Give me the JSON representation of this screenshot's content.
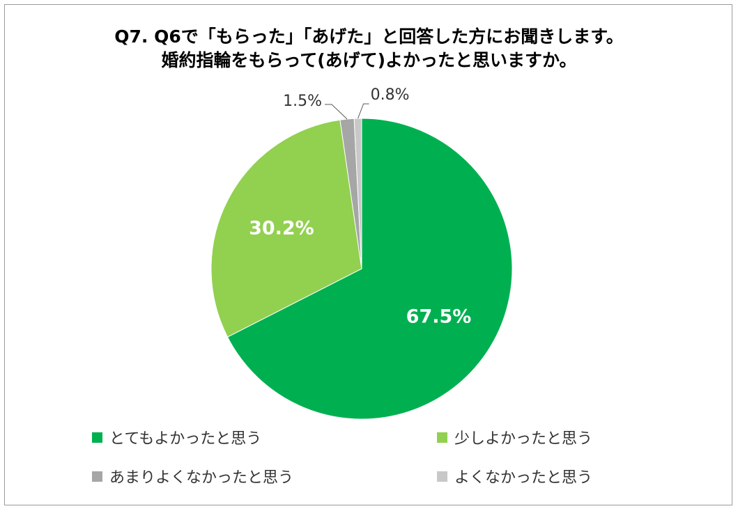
{
  "chart_data": {
    "type": "pie",
    "title_lines": [
      "Q7. Q6で「もらった」「あげた」と回答した方にお聞きします。",
      "婚約指輪をもらって(あげて)よかったと思いますか。"
    ],
    "slices": [
      {
        "label": "とてもよかったと思う",
        "value": 67.5,
        "display": "67.5%",
        "color": "#00b050"
      },
      {
        "label": "少しよかったと思う",
        "value": 30.2,
        "display": "30.2%",
        "color": "#92d050"
      },
      {
        "label": "あまりよくなかったと思う",
        "value": 1.5,
        "display": "1.5%",
        "color": "#a6a6a6"
      },
      {
        "label": "よくなかったと思う",
        "value": 0.8,
        "display": "0.8%",
        "color": "#c8c8c8"
      }
    ],
    "start_angle": "12 o'clock",
    "direction": "clockwise",
    "legend_position": "bottom"
  }
}
